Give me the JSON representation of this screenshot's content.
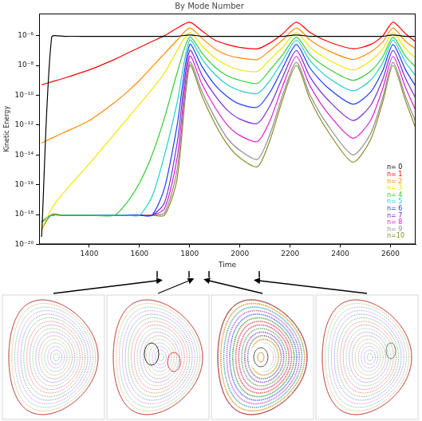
{
  "chart_data": {
    "type": "line",
    "title": "By Mode Number",
    "xlabel": "Time",
    "ylabel": "Kinetic Energy",
    "log": "y",
    "grid": false,
    "legend": "lower right",
    "xlim": [
      1200,
      2700
    ],
    "xticks": [
      1400,
      1600,
      1800,
      2000,
      2200,
      2400,
      2600
    ],
    "ylim": [
      1e-20,
      3e-05
    ],
    "yticks": [
      {
        "value": 1e-20,
        "label": "10⁻²⁰"
      },
      {
        "value": 1e-18,
        "label": "10⁻¹⁸"
      },
      {
        "value": 1e-16,
        "label": "10⁻¹⁶"
      },
      {
        "value": 1e-14,
        "label": "10⁻¹⁴"
      },
      {
        "value": 1e-12,
        "label": "10⁻¹²"
      },
      {
        "value": 1e-10,
        "label": "10⁻¹⁰"
      },
      {
        "value": 1e-08,
        "label": "10⁻⁸"
      },
      {
        "value": 1e-06,
        "label": "10⁻⁶"
      }
    ],
    "x": [
      1210,
      1250,
      1300,
      1400,
      1500,
      1550,
      1600,
      1650,
      1700,
      1750,
      1800,
      1850,
      1900,
      1950,
      2000,
      2070,
      2120,
      2170,
      2225,
      2280,
      2350,
      2450,
      2520,
      2570,
      2610,
      2660,
      2700
    ],
    "series": [
      {
        "name": "n= 0",
        "color": "#000000",
        "values": [
          3.2e-20,
          7.9e-07,
          8.9e-07,
          8.9e-07,
          8.9e-07,
          8.9e-07,
          8.9e-07,
          8.9e-07,
          8.9e-07,
          8.9e-07,
          1.1e-06,
          8.9e-07,
          8.9e-07,
          8.9e-07,
          8.9e-07,
          8.9e-07,
          8.9e-07,
          8.9e-07,
          1.1e-06,
          8.9e-07,
          8.9e-07,
          8.9e-07,
          8.9e-07,
          8.9e-07,
          1.1e-06,
          8.9e-07,
          8.9e-07
        ]
      },
      {
        "name": "n= 1",
        "color": "#ff0000",
        "values": [
          5e-10,
          7.9e-10,
          1.4e-09,
          5e-09,
          2.5e-08,
          6.3e-08,
          1.6e-07,
          4e-07,
          1e-06,
          3.2e-06,
          7.9e-06,
          2e-06,
          5e-07,
          2.5e-07,
          1.6e-07,
          1.3e-07,
          3.2e-07,
          1.3e-06,
          7.9e-06,
          1.6e-06,
          4e-07,
          1.3e-07,
          2.5e-07,
          1e-06,
          7.9e-06,
          1.3e-06,
          4e-07
        ]
      },
      {
        "name": "n= 2",
        "color": "#ff8c00",
        "values": [
          6.3e-14,
          1.3e-13,
          3.2e-13,
          2e-12,
          3.2e-11,
          1.6e-10,
          1e-09,
          7.9e-09,
          6.3e-08,
          5e-07,
          3.2e-06,
          6.3e-07,
          1.3e-07,
          5e-08,
          3.2e-08,
          2.5e-08,
          1e-07,
          5e-07,
          3.2e-06,
          5e-07,
          1e-07,
          2.5e-08,
          7.9e-08,
          4e-07,
          3.2e-06,
          4e-07,
          1.3e-07
        ]
      },
      {
        "name": "n= 3",
        "color": "#f2e600",
        "values": [
          1e-19,
          2.5e-18,
          3.2e-17,
          2.5e-15,
          2.5e-13,
          2.5e-12,
          2.5e-11,
          2.5e-10,
          3.2e-09,
          1e-07,
          1.6e-06,
          2e-07,
          3.2e-08,
          1e-08,
          5e-09,
          4e-09,
          2.5e-08,
          1.6e-07,
          1.6e-06,
          1.6e-07,
          2.5e-08,
          5e-09,
          2e-08,
          1.3e-07,
          1.6e-06,
          1.3e-07,
          3.2e-08
        ]
      },
      {
        "name": "n= 4",
        "color": "#33cc33",
        "values": [
          3.2e-19,
          8.9e-19,
          8.9e-19,
          8.9e-19,
          8.9e-19,
          6.3e-18,
          1.3e-16,
          1e-14,
          3.2e-12,
          3.2e-09,
          7.9e-07,
          6.3e-08,
          7.9e-09,
          2e-09,
          1e-09,
          6.3e-10,
          5e-09,
          5e-08,
          7.9e-07,
          5e-08,
          6.3e-09,
          1e-09,
          4e-09,
          4e-08,
          7.9e-07,
          4e-08,
          7.9e-09
        ]
      },
      {
        "name": "n= 5",
        "color": "#22cccc",
        "values": [
          3.2e-19,
          8.9e-19,
          8.9e-19,
          8.9e-19,
          8.9e-19,
          8.9e-19,
          8.9e-19,
          1.6e-17,
          1e-14,
          3.2e-11,
          5e-07,
          2.5e-08,
          2.5e-09,
          5e-10,
          2e-10,
          1.3e-10,
          1e-09,
          2e-08,
          5e-07,
          2e-08,
          1.6e-09,
          2e-10,
          1e-09,
          1.6e-08,
          5e-07,
          1.6e-08,
          2e-09
        ]
      },
      {
        "name": "n= 6",
        "color": "#1a3cff",
        "values": [
          3.2e-19,
          8.9e-19,
          8.9e-19,
          8.9e-19,
          8.9e-19,
          8.9e-19,
          8.9e-19,
          8.9e-19,
          6.3e-17,
          1e-12,
          2.5e-07,
          7.9e-09,
          5e-10,
          7.9e-11,
          2.5e-11,
          1.6e-11,
          1.6e-10,
          6.3e-09,
          2.5e-07,
          6.3e-09,
          3.2e-10,
          2.5e-11,
          1.6e-10,
          5e-09,
          2.5e-07,
          5e-09,
          4e-10
        ]
      },
      {
        "name": "n= 7",
        "color": "#7a2bd6",
        "values": [
          3.2e-19,
          8.9e-19,
          8.9e-19,
          8.9e-19,
          8.9e-19,
          8.9e-19,
          8.9e-19,
          8.9e-19,
          6.3e-18,
          6.3e-14,
          1e-07,
          2e-09,
          1e-10,
          1e-11,
          2.5e-12,
          1.3e-12,
          2e-11,
          1.6e-09,
          1e-07,
          1.6e-09,
          5e-11,
          2e-12,
          2e-11,
          1.3e-09,
          1e-07,
          1.3e-09,
          6.3e-11
        ]
      },
      {
        "name": "n= 8",
        "color": "#e020c8",
        "values": [
          3.2e-19,
          8.9e-19,
          8.9e-19,
          8.9e-19,
          8.9e-19,
          8.9e-19,
          8.9e-19,
          8.9e-19,
          2.5e-18,
          6.3e-15,
          4e-08,
          5e-10,
          1.6e-11,
          1e-12,
          2e-13,
          7.9e-14,
          2e-12,
          4e-10,
          4e-08,
          4e-10,
          6.3e-12,
          1.3e-13,
          2e-12,
          3.2e-10,
          4e-08,
          3.2e-10,
          1e-11
        ]
      },
      {
        "name": "n= 9",
        "color": "#8c8c8c",
        "values": [
          3.2e-19,
          8.9e-19,
          8.9e-19,
          8.9e-19,
          8.9e-19,
          8.9e-19,
          8.9e-19,
          8.9e-19,
          1.3e-18,
          1e-15,
          1.6e-08,
          1.6e-10,
          3.2e-12,
          1.3e-13,
          2e-14,
          5e-15,
          2.5e-13,
          1e-10,
          1.6e-08,
          1e-10,
          1e-12,
          1e-14,
          2.5e-13,
          7.9e-11,
          1.6e-08,
          7.9e-11,
          1.6e-12
        ]
      },
      {
        "name": "n=10",
        "color": "#8f8a2a",
        "values": [
          1e-19,
          1e-18,
          8.9e-19,
          8.9e-19,
          8.9e-19,
          8.9e-19,
          8.9e-19,
          8.9e-19,
          8.9e-19,
          2.5e-16,
          1e-08,
          7.9e-11,
          1.3e-12,
          5e-14,
          6.3e-15,
          1.6e-15,
          1e-13,
          5e-11,
          1e-08,
          5e-11,
          4e-13,
          3.2e-15,
          1e-13,
          4e-11,
          1e-08,
          4e-11,
          6.3e-13
        ]
      }
    ]
  }
}
